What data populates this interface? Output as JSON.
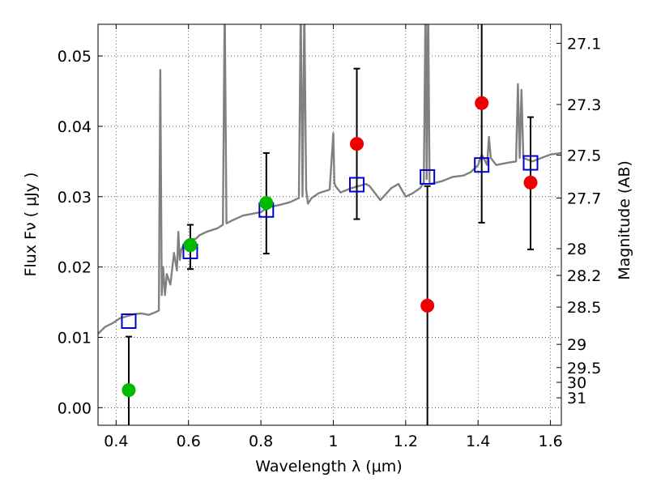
{
  "chart_data": {
    "type": "scatter",
    "title": "",
    "xlabel": "Wavelength  λ (μm)",
    "ylabel": "Flux  Fν  ( μJy )",
    "y2label": "Magnitude (AB)",
    "xlim": [
      0.35,
      1.63
    ],
    "ylim": [
      -0.0025,
      0.0545
    ],
    "grid": true,
    "legend": "none",
    "x_ticks": [
      0.4,
      0.6,
      0.8,
      1.0,
      1.2,
      1.4,
      1.6
    ],
    "x_tick_labels": [
      "0.4",
      "0.6",
      "0.8",
      "1",
      "1.2",
      "1.4",
      "1.6"
    ],
    "y_ticks": [
      0.0,
      0.01,
      0.02,
      0.03,
      0.04,
      0.05
    ],
    "y_tick_labels": [
      "0.00",
      "0.01",
      "0.02",
      "0.03",
      "0.04",
      "0.05"
    ],
    "y2_ticks": [
      {
        "label": "27.1",
        "flux": 0.0518
      },
      {
        "label": "27.3",
        "flux": 0.0431
      },
      {
        "label": "27.5",
        "flux": 0.0359
      },
      {
        "label": "27.7",
        "flux": 0.0298
      },
      {
        "label": "28",
        "flux": 0.0226
      },
      {
        "label": "28.2",
        "flux": 0.0188
      },
      {
        "label": "28.5",
        "flux": 0.0143
      },
      {
        "label": "29",
        "flux": 0.009
      },
      {
        "label": "29.5",
        "flux": 0.0057
      },
      {
        "label": "30",
        "flux": 0.0036
      },
      {
        "label": "31",
        "flux": 0.0014
      }
    ],
    "series": [
      {
        "kind": "line",
        "color": "#808080",
        "x": [
          0.35,
          0.37,
          0.39,
          0.41,
          0.43,
          0.45,
          0.47,
          0.49,
          0.51,
          0.518,
          0.522,
          0.526,
          0.53,
          0.535,
          0.54,
          0.55,
          0.56,
          0.568,
          0.572,
          0.576,
          0.58,
          0.59,
          0.6,
          0.61,
          0.62,
          0.63,
          0.65,
          0.68,
          0.695,
          0.7,
          0.705,
          0.72,
          0.75,
          0.78,
          0.8,
          0.82,
          0.85,
          0.88,
          0.905,
          0.91,
          0.915,
          0.92,
          0.925,
          0.93,
          0.94,
          0.96,
          0.99,
          1.0,
          1.003,
          1.006,
          1.02,
          1.05,
          1.09,
          1.1,
          1.13,
          1.16,
          1.18,
          1.2,
          1.22,
          1.24,
          1.25,
          1.255,
          1.258,
          1.262,
          1.266,
          1.27,
          1.3,
          1.33,
          1.36,
          1.38,
          1.39,
          1.4,
          1.41,
          1.425,
          1.43,
          1.435,
          1.45,
          1.48,
          1.505,
          1.51,
          1.515,
          1.52,
          1.525,
          1.55,
          1.58,
          1.6,
          1.63
        ],
        "y": [
          0.0105,
          0.0115,
          0.012,
          0.0127,
          0.013,
          0.0133,
          0.0134,
          0.0132,
          0.0136,
          0.0138,
          0.048,
          0.016,
          0.02,
          0.016,
          0.019,
          0.0175,
          0.022,
          0.0195,
          0.025,
          0.021,
          0.0225,
          0.0235,
          0.0238,
          0.024,
          0.024,
          0.0245,
          0.025,
          0.0255,
          0.026,
          0.058,
          0.0262,
          0.0266,
          0.0273,
          0.0276,
          0.0278,
          0.0285,
          0.0288,
          0.0292,
          0.0298,
          0.057,
          0.03,
          0.057,
          0.031,
          0.029,
          0.0298,
          0.0305,
          0.031,
          0.039,
          0.032,
          0.0315,
          0.0306,
          0.0312,
          0.0318,
          0.0315,
          0.0295,
          0.0312,
          0.0318,
          0.03,
          0.0305,
          0.0312,
          0.032,
          0.058,
          0.0325,
          0.058,
          0.032,
          0.0318,
          0.0322,
          0.0328,
          0.033,
          0.0335,
          0.034,
          0.0345,
          0.036,
          0.0345,
          0.0385,
          0.0355,
          0.0345,
          0.0348,
          0.035,
          0.046,
          0.0355,
          0.0452,
          0.0355,
          0.035,
          0.0356,
          0.036,
          0.0362
        ]
      },
      {
        "kind": "box",
        "color": "#0000cc",
        "x": [
          0.435,
          0.605,
          0.815,
          1.065,
          1.26,
          1.41,
          1.545
        ],
        "y": [
          0.0123,
          0.0222,
          0.0281,
          0.0317,
          0.0328,
          0.0345,
          0.0348
        ]
      },
      {
        "kind": "dot",
        "color": "#00bb00",
        "x": [
          0.435,
          0.605,
          0.815
        ],
        "y": [
          0.0025,
          0.0231,
          0.0291
        ]
      },
      {
        "kind": "dot",
        "color": "#ee0000",
        "x": [
          1.065,
          1.26,
          1.41,
          1.545
        ],
        "y": [
          0.0375,
          0.0145,
          0.0433,
          0.032
        ]
      }
    ],
    "errorbars": [
      {
        "x": 0.435,
        "low": -0.0025,
        "high": 0.0101
      },
      {
        "x": 0.605,
        "low": 0.0197,
        "high": 0.026
      },
      {
        "x": 0.815,
        "low": 0.0219,
        "high": 0.0362
      },
      {
        "x": 1.065,
        "low": 0.0268,
        "high": 0.0482
      },
      {
        "x": 1.26,
        "low": -0.0025,
        "high": 0.0315
      },
      {
        "x": 1.41,
        "low": 0.0263,
        "high": 0.0545
      },
      {
        "x": 1.545,
        "low": 0.0225,
        "high": 0.0413
      }
    ]
  }
}
